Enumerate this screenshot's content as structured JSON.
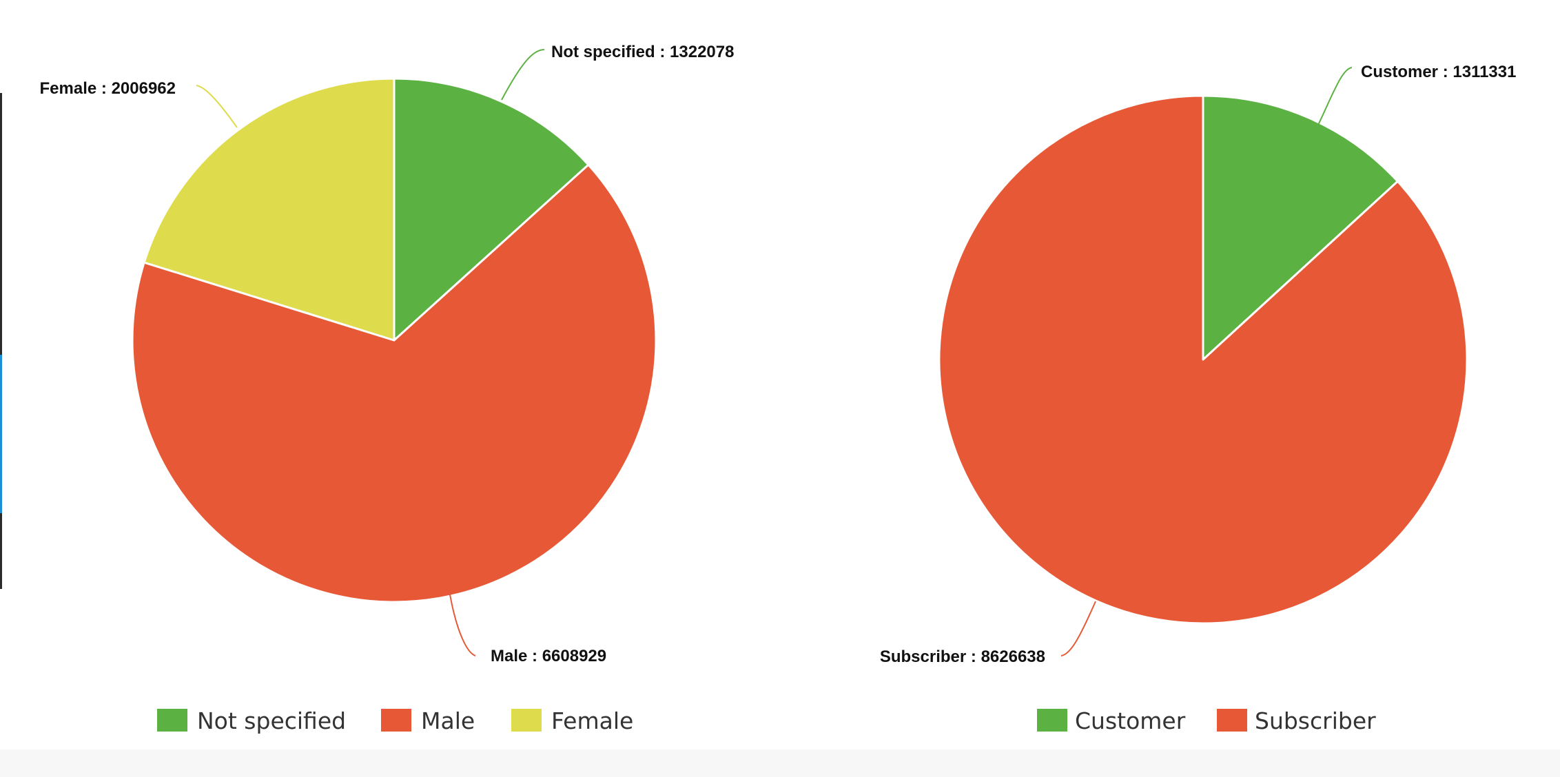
{
  "chart_data": [
    {
      "type": "pie",
      "categories": [
        "Not specified",
        "Male",
        "Female"
      ],
      "values": [
        1322078,
        6608929,
        2006962
      ],
      "colors": [
        "#5bb243",
        "#e75936",
        "#dedb4c"
      ],
      "labels": [
        {
          "name": "Not specified",
          "separator": " : ",
          "value": "1322078"
        },
        {
          "name": "Male",
          "separator": " : ",
          "value": "6608929"
        },
        {
          "name": "Female",
          "separator": " : ",
          "value": "2006962"
        }
      ],
      "legend": [
        "Not specified",
        "Male",
        "Female"
      ],
      "legend_position": "bottom"
    },
    {
      "type": "pie",
      "categories": [
        "Customer",
        "Subscriber"
      ],
      "values": [
        1311331,
        8626638
      ],
      "colors": [
        "#5bb243",
        "#e75936"
      ],
      "labels": [
        {
          "name": "Customer",
          "separator": " : ",
          "value": "1311331"
        },
        {
          "name": "Subscriber",
          "separator": " : ",
          "value": "8626638"
        }
      ],
      "legend": [
        "Customer",
        "Subscriber"
      ],
      "legend_position": "bottom"
    }
  ]
}
